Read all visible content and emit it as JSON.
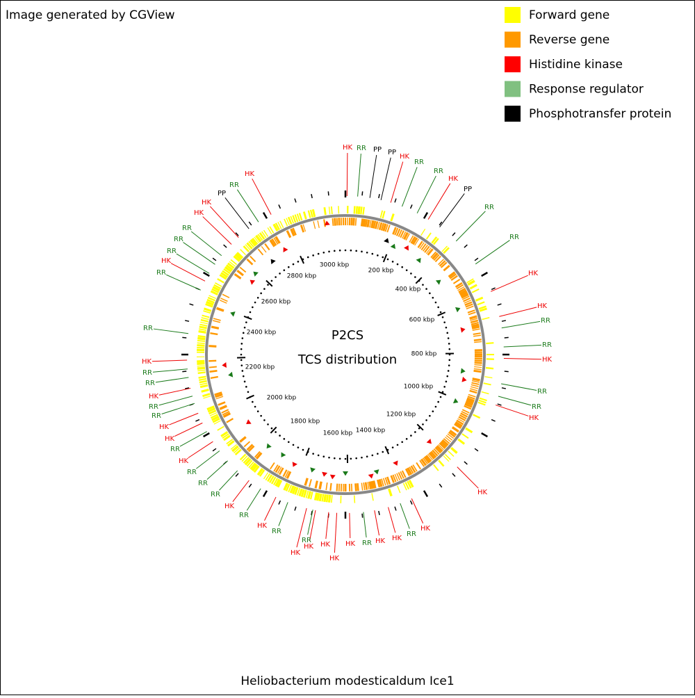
{
  "header": {
    "title": "Image generated by CGView"
  },
  "legend": [
    {
      "label": "Forward gene",
      "color": "#ffff00"
    },
    {
      "label": "Reverse gene",
      "color": "#ff9900"
    },
    {
      "label": "Histidine kinase",
      "color": "#ff0000"
    },
    {
      "label": "Response regulator",
      "color": "#80c080"
    },
    {
      "label": "Phosphotransfer protein",
      "color": "#000000"
    }
  ],
  "center": {
    "title": "P2CS",
    "subtitle": "TCS distribution"
  },
  "ruler_labels": [
    "200 kbp",
    "400 kbp",
    "600 kbp",
    "800 kbp",
    "1000 kbp",
    "1200 kbp",
    "1400 kbp",
    "1600 kbp",
    "1800 kbp",
    "2000 kbp",
    "2200 kbp",
    "2400 kbp",
    "2600 kbp",
    "2800 kbp",
    "3000 kbp"
  ],
  "feature_labels": [
    "HK",
    "RR",
    "PP",
    "PP",
    "HK",
    "RR",
    "RR",
    "HK",
    "PP",
    "RR",
    "RR",
    "HK",
    "HK",
    "RR",
    "RR",
    "HK",
    "RR",
    "RR",
    "HK",
    "HK",
    "RR",
    "HK",
    "HK",
    "HK",
    "RR",
    "HK",
    "HK",
    "HK",
    "HK",
    "HK",
    "RR",
    "RR",
    "HK",
    "RR",
    "HK",
    "RR",
    "RR",
    "RR",
    "HK",
    "RR",
    "HK",
    "HK",
    "RR",
    "RR",
    "HK",
    "RR",
    "RR",
    "HK",
    "RR",
    "RR",
    "HK",
    "RR",
    "RR",
    "RR",
    "HK",
    "HK",
    "PP",
    "RR",
    "HK"
  ],
  "label_colors": {
    "HK": "#ee0000",
    "RR": "#1a7a1a",
    "PP": "#000000"
  },
  "footer": {
    "title": "Heliobacterium modesticaldum Ice1"
  }
}
